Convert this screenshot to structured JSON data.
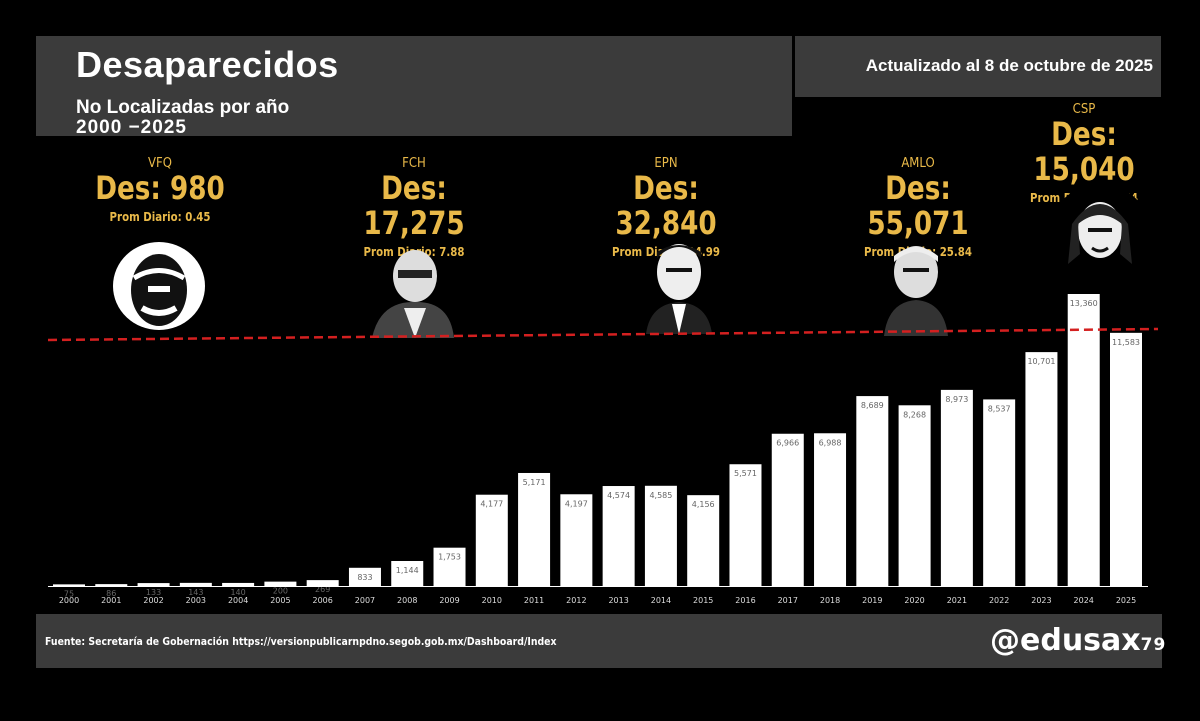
{
  "header": {
    "title": "Desaparecidos",
    "subtitle_line1": "No Localizadas por año",
    "subtitle_line2": "2000 −2025",
    "updated": "Actualizado al 8 de octubre de 2025"
  },
  "terms": [
    {
      "name": "VFQ",
      "des": "Des: 980",
      "prom": "Prom Diario: 0.45"
    },
    {
      "name": "FCH",
      "des": "Des: 17,275",
      "prom": "Prom Diario: 7.88"
    },
    {
      "name": "EPN",
      "des": "Des: 32,840",
      "prom": "Prom Diario: 14.99"
    },
    {
      "name": "AMLO",
      "des": "Des: 55,071",
      "prom": "Prom Diario: 25.84"
    },
    {
      "name": "CSP",
      "des": "Des: 15,040",
      "prom": "Prom Diario: 40.54"
    }
  ],
  "footer": {
    "source": "Fuente: Secretaría de Gobernación https://versionpublicarnpdno.segob.gob.mx/Dashboard/Index",
    "handle": "@edusax",
    "handle_num": "79"
  },
  "colors": {
    "background": "#000000",
    "panel": "#3b3b3b",
    "accent": "#e9b949",
    "bars": "#ffffff",
    "reference_line": "#d42020"
  },
  "chart_data": {
    "type": "bar",
    "categories": [
      "2000",
      "2001",
      "2002",
      "2003",
      "2004",
      "2005",
      "2006",
      "2007",
      "2008",
      "2009",
      "2010",
      "2011",
      "2012",
      "2013",
      "2014",
      "2015",
      "2016",
      "2017",
      "2018",
      "2019",
      "2020",
      "2021",
      "2022",
      "2023",
      "2024",
      "2025"
    ],
    "values": [
      75,
      86,
      133,
      143,
      140,
      200,
      269,
      833,
      1144,
      1753,
      4177,
      5171,
      4197,
      4574,
      4585,
      4156,
      5571,
      6966,
      6988,
      8689,
      8268,
      8973,
      8537,
      10701,
      13360,
      11583
    ],
    "labels": [
      "75",
      "86",
      "133",
      "143",
      "140",
      "200",
      "269",
      "833",
      "1,144",
      "1,753",
      "4,177",
      "5,171",
      "4,197",
      "4,574",
      "4,585",
      "4,156",
      "5,571",
      "6,966",
      "6,988",
      "8,689",
      "8,268",
      "8,973",
      "8,537",
      "10,701",
      "13,360",
      "11,583"
    ],
    "reference_line": {
      "value": 11583,
      "style": "dashed",
      "color": "#d42020"
    },
    "ylim": [
      0,
      13360
    ],
    "grid": false
  }
}
